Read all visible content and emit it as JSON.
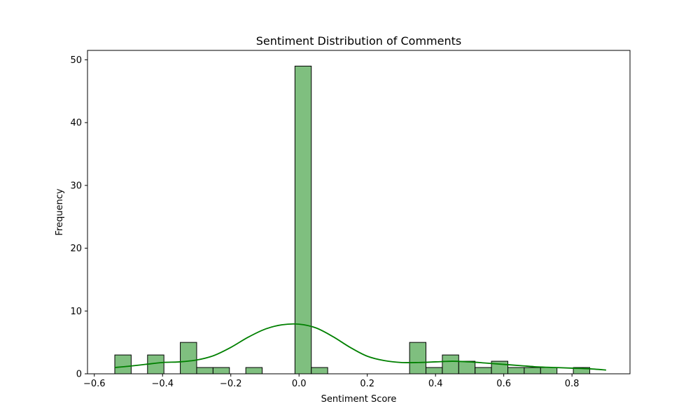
{
  "chart_data": {
    "type": "bar",
    "title": "Sentiment Distribution of Comments",
    "xlabel": "Sentiment Score",
    "ylabel": "Frequency",
    "xlim": [
      -0.62,
      0.97
    ],
    "ylim": [
      0,
      51.5
    ],
    "xticks": [
      -0.6,
      -0.4,
      -0.2,
      0.0,
      0.2,
      0.4,
      0.6,
      0.8
    ],
    "xtick_labels": [
      "−0.6",
      "−0.4",
      "−0.2",
      "0.0",
      "0.2",
      "0.4",
      "0.6",
      "0.8"
    ],
    "yticks": [
      0,
      10,
      20,
      30,
      40,
      50
    ],
    "ytick_labels": [
      "0",
      "10",
      "20",
      "30",
      "40",
      "50"
    ],
    "bins": {
      "start": -0.54,
      "width": 0.048,
      "counts": [
        3,
        0,
        3,
        0,
        5,
        1,
        1,
        0,
        1,
        0,
        0,
        49,
        1,
        0,
        0,
        0,
        0,
        0,
        5,
        1,
        3,
        2,
        1,
        2,
        1,
        1,
        1,
        0,
        1
      ]
    },
    "bar_color": "#7fbf7f",
    "bar_edge_color": "#000000",
    "kde_color": "#008000",
    "kde_curve": {
      "x": [
        -0.54,
        -0.5,
        -0.45,
        -0.4,
        -0.35,
        -0.3,
        -0.25,
        -0.2,
        -0.15,
        -0.1,
        -0.05,
        0.0,
        0.05,
        0.1,
        0.15,
        0.2,
        0.25,
        0.3,
        0.35,
        0.4,
        0.45,
        0.5,
        0.55,
        0.6,
        0.65,
        0.7,
        0.75,
        0.8,
        0.85,
        0.9
      ],
      "y": [
        1.0,
        1.2,
        1.5,
        1.8,
        1.9,
        2.2,
        2.9,
        4.2,
        5.8,
        7.1,
        7.8,
        7.9,
        7.3,
        5.9,
        4.2,
        2.8,
        2.1,
        1.8,
        1.8,
        1.9,
        2.0,
        1.9,
        1.7,
        1.5,
        1.3,
        1.1,
        1.0,
        0.9,
        0.8,
        0.6
      ]
    }
  }
}
